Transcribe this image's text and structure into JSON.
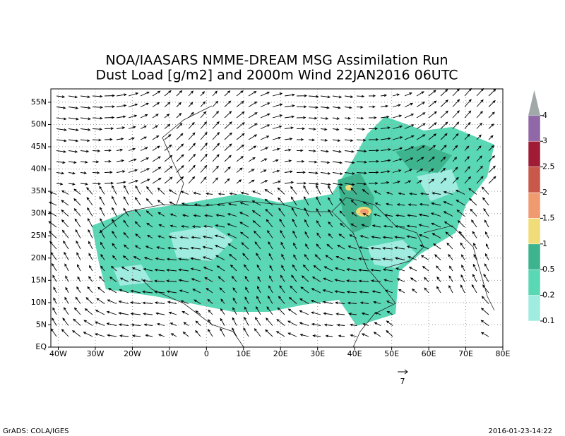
{
  "chart_data": {
    "type": "map",
    "title": [
      "NOA/IAASARS NMME-DREAM MSG Assimilation Run",
      "Dust Load [g/m2] and 2000m Wind 22JAN2016 06UTC"
    ],
    "xlim": [
      -42,
      80
    ],
    "ylim": [
      0,
      58
    ],
    "xticks": [
      {
        "value": -40,
        "label": "40W"
      },
      {
        "value": -30,
        "label": "30W"
      },
      {
        "value": -20,
        "label": "20W"
      },
      {
        "value": -10,
        "label": "10W"
      },
      0,
      {
        "value": 10,
        "label": "10E"
      },
      {
        "value": 20,
        "label": "20E"
      },
      {
        "value": 30,
        "label": "30E"
      },
      {
        "value": 40,
        "label": "40E"
      },
      {
        "value": 50,
        "label": "50E"
      },
      {
        "value": 60,
        "label": "60E"
      },
      {
        "value": 70,
        "label": "70E"
      },
      {
        "value": 80,
        "label": "80E"
      }
    ],
    "yticks": [
      {
        "value": 0,
        "label": "EQ"
      },
      {
        "value": 5,
        "label": "5N"
      },
      {
        "value": 10,
        "label": "10N"
      },
      {
        "value": 15,
        "label": "15N"
      },
      {
        "value": 20,
        "label": "20N"
      },
      {
        "value": 25,
        "label": "25N"
      },
      {
        "value": 30,
        "label": "30N"
      },
      {
        "value": 35,
        "label": "35N"
      },
      {
        "value": 40,
        "label": "40N"
      },
      {
        "value": 45,
        "label": "45N"
      },
      {
        "value": 50,
        "label": "50N"
      },
      {
        "value": 55,
        "label": "55N"
      }
    ],
    "grid": true,
    "colorbar": {
      "levels": [
        0.1,
        0.2,
        0.5,
        1,
        1.5,
        2,
        2.5,
        3,
        4
      ],
      "colors": [
        "#a0ece0",
        "#5ad7b4",
        "#3db48e",
        "#f0dc78",
        "#f09a70",
        "#c8584a",
        "#a01c34",
        "#9068a8"
      ],
      "extend_color": "#a0a8a8"
    },
    "reference_vector": 7,
    "footer_left": "GrADS: COLA/IGES",
    "footer_right": "2016-01-23-14:22"
  }
}
